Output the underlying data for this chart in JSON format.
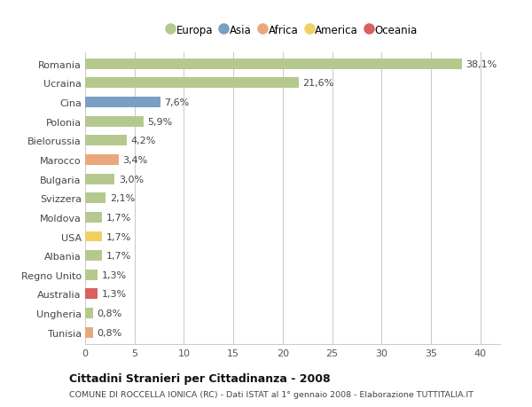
{
  "countries": [
    "Romania",
    "Ucraina",
    "Cina",
    "Polonia",
    "Bielorussia",
    "Marocco",
    "Bulgaria",
    "Svizzera",
    "Moldova",
    "USA",
    "Albania",
    "Regno Unito",
    "Australia",
    "Ungheria",
    "Tunisia"
  ],
  "values": [
    38.1,
    21.6,
    7.6,
    5.9,
    4.2,
    3.4,
    3.0,
    2.1,
    1.7,
    1.7,
    1.7,
    1.3,
    1.3,
    0.8,
    0.8
  ],
  "labels": [
    "38,1%",
    "21,6%",
    "7,6%",
    "5,9%",
    "4,2%",
    "3,4%",
    "3,0%",
    "2,1%",
    "1,7%",
    "1,7%",
    "1,7%",
    "1,3%",
    "1,3%",
    "0,8%",
    "0,8%"
  ],
  "continent": [
    "Europa",
    "Europa",
    "Asia",
    "Europa",
    "Europa",
    "Africa",
    "Europa",
    "Europa",
    "Europa",
    "America",
    "Europa",
    "Europa",
    "Oceania",
    "Europa",
    "Africa"
  ],
  "colors": {
    "Europa": "#b5c98e",
    "Asia": "#7a9fc2",
    "Africa": "#e8a87c",
    "America": "#f0d060",
    "Oceania": "#d96060"
  },
  "legend_order": [
    "Europa",
    "Asia",
    "Africa",
    "America",
    "Oceania"
  ],
  "legend_colors": [
    "#b5c98e",
    "#7a9fc2",
    "#e8a87c",
    "#f0d060",
    "#d96060"
  ],
  "xlim": [
    0,
    42
  ],
  "xticks": [
    0,
    5,
    10,
    15,
    20,
    25,
    30,
    35,
    40
  ],
  "title": "Cittadini Stranieri per Cittadinanza - 2008",
  "subtitle": "COMUNE DI ROCCELLA IONICA (RC) - Dati ISTAT al 1° gennaio 2008 - Elaborazione TUTTITALIA.IT",
  "background_color": "#ffffff",
  "grid_color": "#cccccc",
  "bar_height": 0.55,
  "label_fontsize": 8,
  "tick_fontsize": 8,
  "ytick_fontsize": 8
}
